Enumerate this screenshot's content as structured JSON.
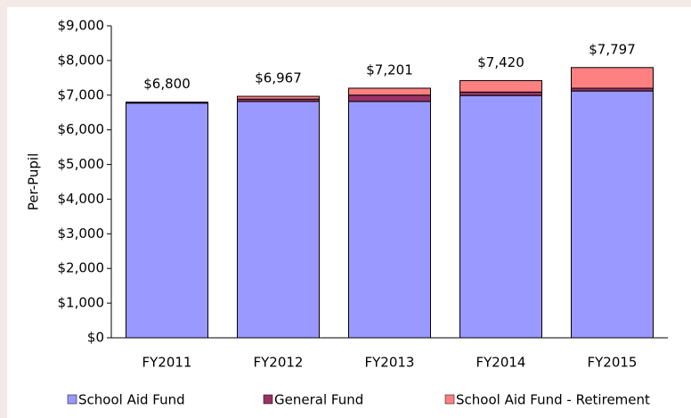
{
  "chart_data": {
    "type": "stacked_bar",
    "y_label": "Per-Pupil",
    "categories": [
      "FY2011",
      "FY2012",
      "FY2013",
      "FY2014",
      "FY2015"
    ],
    "series": [
      {
        "name": "School Aid Fund",
        "color": "#9999ff",
        "values": [
          6770,
          6820,
          6820,
          6990,
          7120
        ]
      },
      {
        "name": "General Fund",
        "color": "#993366",
        "values": [
          30,
          67,
          181,
          100,
          80
        ]
      },
      {
        "name": "School Aid Fund - Retirement",
        "color": "#ff8080",
        "values": [
          0,
          80,
          200,
          330,
          597
        ]
      }
    ],
    "totals": [
      6800,
      6967,
      7201,
      7420,
      7797
    ],
    "total_labels": [
      "$6,800",
      "$6,967",
      "$7,201",
      "$7,420",
      "$7,797"
    ],
    "ylim": [
      0,
      9000
    ],
    "yticks": [
      {
        "value": 0,
        "label": "$0"
      },
      {
        "value": 1000,
        "label": "$1,000"
      },
      {
        "value": 2000,
        "label": "$2,000"
      },
      {
        "value": 3000,
        "label": "$3,000"
      },
      {
        "value": 4000,
        "label": "$4,000"
      },
      {
        "value": 5000,
        "label": "$5,000"
      },
      {
        "value": 6000,
        "label": "$6,000"
      },
      {
        "value": 7000,
        "label": "$7,000"
      },
      {
        "value": 8000,
        "label": "$8,000"
      },
      {
        "value": 9000,
        "label": "$9,000"
      }
    ],
    "legend": "bottom"
  }
}
